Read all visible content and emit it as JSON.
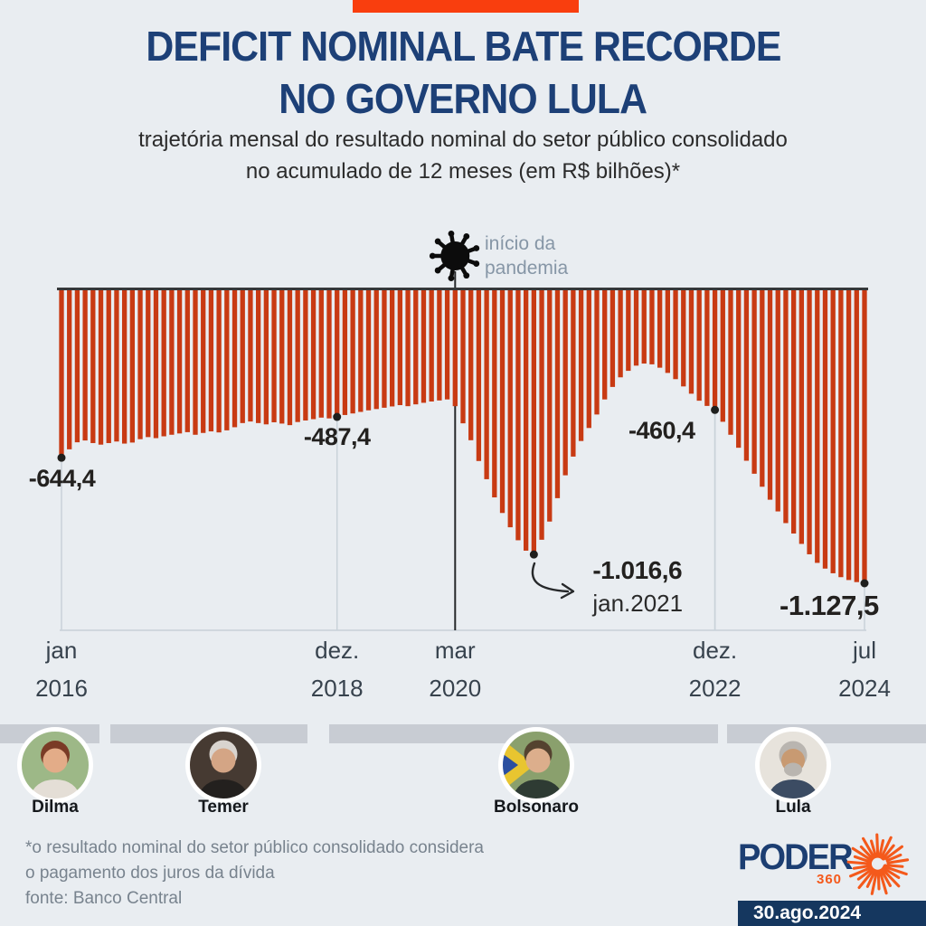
{
  "title": {
    "line1": "DEFICIT NOMINAL BATE RECORDE",
    "line2": "NO GOVERNO LULA"
  },
  "subtitle": {
    "line1": "trajetória mensal do resultado nominal do setor público consolidado",
    "line2": "no acumulado de 12 meses (em R$ bilhões)*"
  },
  "pandemic_note": {
    "line1": "início da",
    "line2": "pandemia"
  },
  "chart_data": {
    "type": "bar",
    "title": "Deficit nominal bate recorde no governo Lula",
    "ylabel": "resultado nominal acumulado em 12 meses (R$ bilhões)",
    "x_start": "jan/2016",
    "x_end": "jul/2024",
    "ylim": [
      -1200,
      0
    ],
    "grid": "vertical ticks only",
    "bar_color": "#c83a13",
    "values": [
      -644.4,
      -612,
      -585,
      -578,
      -588,
      -594,
      -588,
      -582,
      -590,
      -586,
      -573,
      -565,
      -569,
      -562,
      -556,
      -551,
      -546,
      -556,
      -549,
      -543,
      -547,
      -539,
      -527,
      -511,
      -505,
      -511,
      -516,
      -508,
      -513,
      -519,
      -507,
      -501,
      -496,
      -490,
      -493,
      -487.4,
      -480,
      -474,
      -468,
      -462,
      -457,
      -452,
      -447,
      -442,
      -446,
      -439,
      -433,
      -428,
      -424,
      -420,
      -446,
      -512,
      -577,
      -657,
      -727,
      -797,
      -857,
      -912,
      -962,
      -1002,
      -1016.6,
      -960,
      -890,
      -800,
      -712,
      -640,
      -580,
      -530,
      -478,
      -420,
      -372,
      -335,
      -310,
      -290,
      -282,
      -285,
      -298,
      -318,
      -342,
      -370,
      -398,
      -425,
      -445,
      -460.4,
      -506,
      -556,
      -606,
      -656,
      -706,
      -756,
      -806,
      -851,
      -896,
      -936,
      -976,
      -1016,
      -1049,
      -1071,
      -1089,
      -1104,
      -1115,
      -1123,
      -1127.5
    ],
    "ticks": [
      {
        "index": 0,
        "month": "jan",
        "year": "2016"
      },
      {
        "index": 35,
        "month": "dez.",
        "year": "2018"
      },
      {
        "index": 50,
        "month": "mar",
        "year": "2020"
      },
      {
        "index": 83,
        "month": "dez.",
        "year": "2022"
      },
      {
        "index": 102,
        "month": "jul",
        "year": "2024"
      }
    ],
    "annotations": [
      {
        "index": 0,
        "value": -644.4,
        "label": "-644,4"
      },
      {
        "index": 35,
        "value": -487.4,
        "label": "-487,4"
      },
      {
        "index": 60,
        "value": -1016.6,
        "label": "-1.016,6",
        "sublabel": "jan.2021"
      },
      {
        "index": 83,
        "value": -460.4,
        "label": "-460,4"
      },
      {
        "index": 102,
        "value": -1127.5,
        "label": "-1.127,5"
      }
    ],
    "pandemic_index": 50
  },
  "presidents": [
    {
      "name": "Dilma"
    },
    {
      "name": "Temer"
    },
    {
      "name": "Bolsonaro"
    },
    {
      "name": "Lula"
    }
  ],
  "footer": {
    "note_line1": "*o resultado nominal do setor público consolidado considera",
    "note_line2": "o pagamento dos juros da dívida",
    "source": "fonte: Banco Central"
  },
  "logo": {
    "name": "PODER",
    "sub": "360"
  },
  "date_badge": "30.ago.2024",
  "colors": {
    "background": "#e9edf1",
    "banner": "#f93e0e",
    "title": "#1d4077",
    "bars": "#c83a13",
    "band": "#c8ccd3",
    "badge": "#15375f",
    "logo_navy": "#1c3e72",
    "logo_orange": "#f4591b"
  }
}
